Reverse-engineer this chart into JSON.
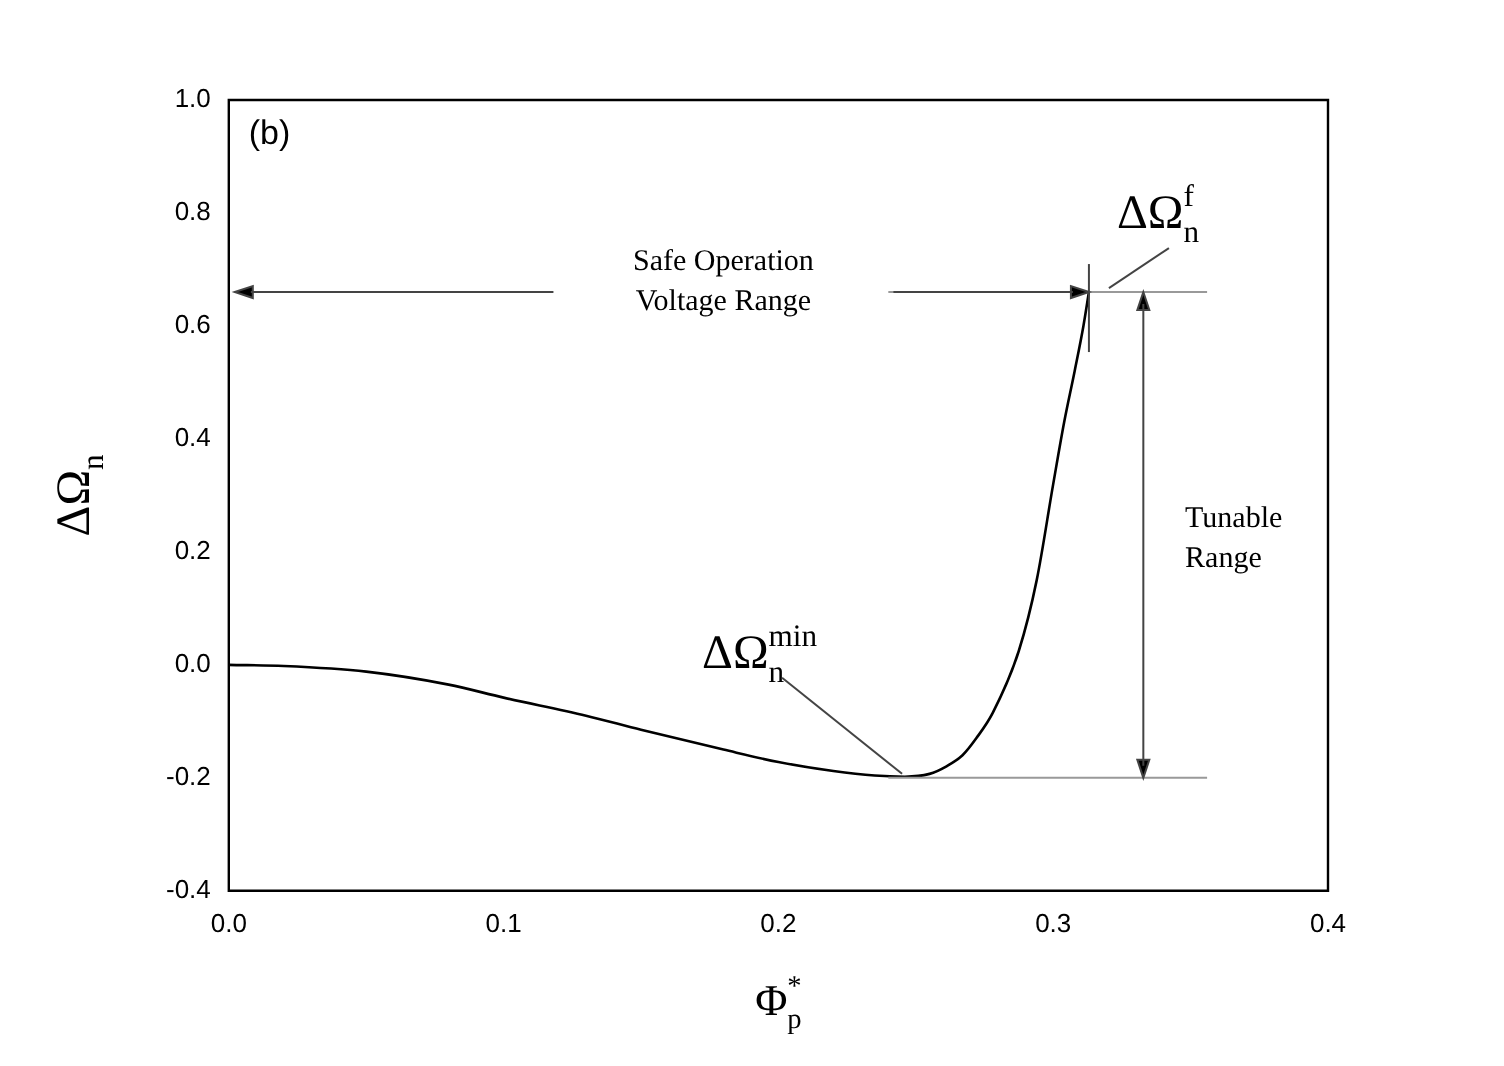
{
  "chart_data": {
    "type": "line",
    "xlabel": "Φ$_{p}$$^{*}$",
    "ylabel": "ΔΩ$_{n}$",
    "x": [
      0,
      0.02,
      0.05,
      0.08,
      0.1,
      0.13,
      0.15,
      0.18,
      0.2,
      0.22,
      0.235,
      0.246,
      0.255,
      0.261,
      0.267,
      0.272,
      0.278,
      0.2875,
      0.294,
      0.3,
      0.304,
      0.3078,
      0.311,
      0.313
    ],
    "series": [
      {
        "color": "#000000",
        "values": [
          0,
          -0.002,
          -0.012,
          -0.035,
          -0.058,
          -0.09,
          -0.115,
          -0.15,
          -0.172,
          -0.188,
          -0.196,
          -0.198,
          -0.193,
          -0.18,
          -0.16,
          -0.13,
          -0.085,
          0.025,
          0.15,
          0.32,
          0.43,
          0.52,
          0.6,
          0.66
        ]
      }
    ],
    "xlim": [
      0,
      0.4
    ],
    "xticks": [
      {
        "value": 0,
        "label": "0.0"
      },
      0.1,
      0.2,
      0.3,
      0.4
    ],
    "ylim": [
      -0.4,
      1
    ],
    "yticks": [
      -0.4,
      -0.2,
      {
        "value": 0,
        "label": "0.0"
      },
      0.2,
      0.4,
      0.6,
      0.8,
      {
        "value": 1,
        "label": "1.0"
      }
    ],
    "grid": false,
    "legend": false,
    "marker": "none",
    "line_style": "solid",
    "ref_lines": [
      {
        "axis": "y",
        "value": 0.66,
        "color": "#999999"
      },
      {
        "axis": "y",
        "value": -0.2,
        "color": "#999999"
      }
    ],
    "annotations": [
      "(b)",
      "Safe Operation\nVoltage Range",
      "Tunable\nRange",
      {
        "text": "ΔΩ$_{n}$$^{min}$",
        "x": 0.245,
        "y": -0.2
      },
      {
        "text": "ΔΩ$_{n}$$^{f}$",
        "x": 0.313,
        "y": 0.66
      }
    ]
  }
}
